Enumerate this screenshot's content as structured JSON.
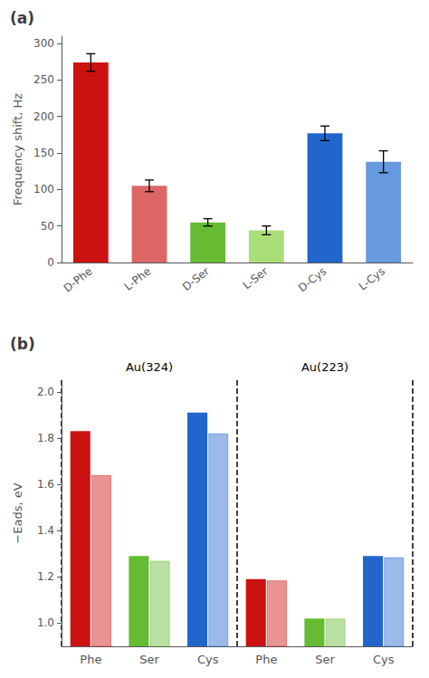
{
  "chart_data": [
    {
      "type": "bar",
      "title": "(a)",
      "categories": [
        "D-Phe",
        "L-Phe",
        "D-Ser",
        "L-Ser",
        "D-Cys",
        "L-Cys"
      ],
      "values": [
        274,
        105,
        55,
        44,
        177,
        138
      ],
      "errors": [
        12,
        8,
        5,
        6,
        10,
        15
      ],
      "colors": [
        "#cc1111",
        "#dd6666",
        "#66bb33",
        "#aade77",
        "#2266cc",
        "#6699dd"
      ],
      "ylabel": "Frequency shift, Hz",
      "ylim": [
        0,
        310
      ],
      "yticks": [
        0,
        50,
        100,
        150,
        200,
        250,
        300
      ],
      "grid": false
    },
    {
      "type": "bar",
      "title": "(b)",
      "annotations": [
        "Au(324)",
        "Au(223)"
      ],
      "categories": [
        "Phe",
        "Ser",
        "Cys",
        "Phe",
        "Ser",
        "Cys"
      ],
      "series": [
        {
          "values": [
            1.83,
            1.29,
            1.91,
            1.19,
            1.02,
            1.29
          ],
          "colors": [
            "#cc1111",
            "#66bb33",
            "#2266cc",
            "#cc1111",
            "#66bb33",
            "#2266cc"
          ]
        },
        {
          "values": [
            1.64,
            1.27,
            1.82,
            1.185,
            1.02,
            1.285
          ],
          "colors": [
            "#cc1111",
            "#66bb33",
            "#2266cc",
            "#cc1111",
            "#66bb33",
            "#2266cc"
          ]
        }
      ],
      "ylabel": "−Eads, eV",
      "ylim": [
        0.9,
        2.05
      ],
      "yticks": [
        {
          "value": 1.0,
          "label": "1.0"
        },
        1.2,
        1.4,
        1.6,
        1.8,
        {
          "value": 2.0,
          "label": "2.0"
        }
      ],
      "grid": false
    }
  ]
}
